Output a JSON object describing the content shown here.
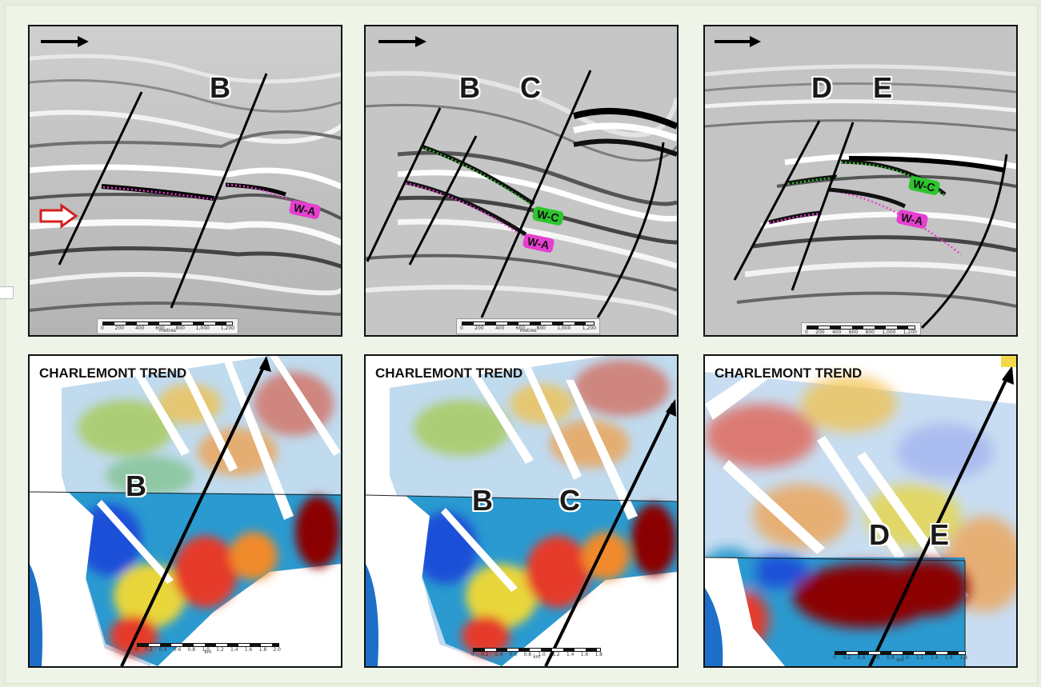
{
  "seismic": [
    {
      "faults": [
        "B"
      ],
      "horizons": [
        {
          "label": "W-A",
          "color": "#e63fd0"
        }
      ],
      "scale": {
        "ticks": [
          "0",
          "200",
          "400",
          "600",
          "800",
          "1,000",
          "1,200"
        ],
        "unit": "metres"
      }
    },
    {
      "faults": [
        "B",
        "C"
      ],
      "horizons": [
        {
          "label": "W-C",
          "color": "#2ec52e"
        },
        {
          "label": "W-A",
          "color": "#e63fd0"
        }
      ],
      "scale": {
        "ticks": [
          "0",
          "200",
          "400",
          "600",
          "800",
          "1,000",
          "1,200"
        ],
        "unit": "metres"
      }
    },
    {
      "faults": [
        "D",
        "E"
      ],
      "horizons": [
        {
          "label": "W-C",
          "color": "#2ec52e"
        },
        {
          "label": "W-A",
          "color": "#e63fd0"
        }
      ],
      "scale": {
        "ticks": [
          "0",
          "200",
          "400",
          "600",
          "800",
          "1,000",
          "1,200"
        ],
        "unit": ""
      }
    }
  ],
  "maps": [
    {
      "title": "CHARLEMONT TREND",
      "faults": [
        "B"
      ],
      "scale": {
        "ticks": [
          "0",
          "0.2",
          "0.4",
          "0.6",
          "0.8",
          "1.0",
          "1.2",
          "1.4",
          "1.6",
          "1.8",
          "2.0"
        ],
        "unit": "km"
      }
    },
    {
      "title": "CHARLEMONT TREND",
      "faults": [
        "B",
        "C"
      ],
      "scale": {
        "ticks": [
          "0",
          "0.2",
          "0.4",
          "0.6",
          "0.8",
          "1.0",
          "1.2",
          "1.4",
          "1.6",
          "1.8"
        ],
        "unit": "km"
      }
    },
    {
      "title": "CHARLEMONT TREND",
      "faults": [
        "D",
        "E"
      ],
      "scale": {
        "ticks": [
          "0",
          "0.2",
          "0.4",
          "0.6",
          "0.8",
          "1.0",
          "1.2",
          "1.4",
          "1.6",
          "1.8"
        ],
        "unit": "km"
      }
    }
  ],
  "icons": {
    "direction_arrow": "arrow-right-icon",
    "marker_arrow": "hollow-arrow-icon"
  },
  "colors": {
    "horizon_wa": "#e63fd0",
    "horizon_wc": "#2ec52e",
    "marker_arrow": "#d42020",
    "map_high": "#8b0000",
    "map_low": "#1e50d8"
  }
}
